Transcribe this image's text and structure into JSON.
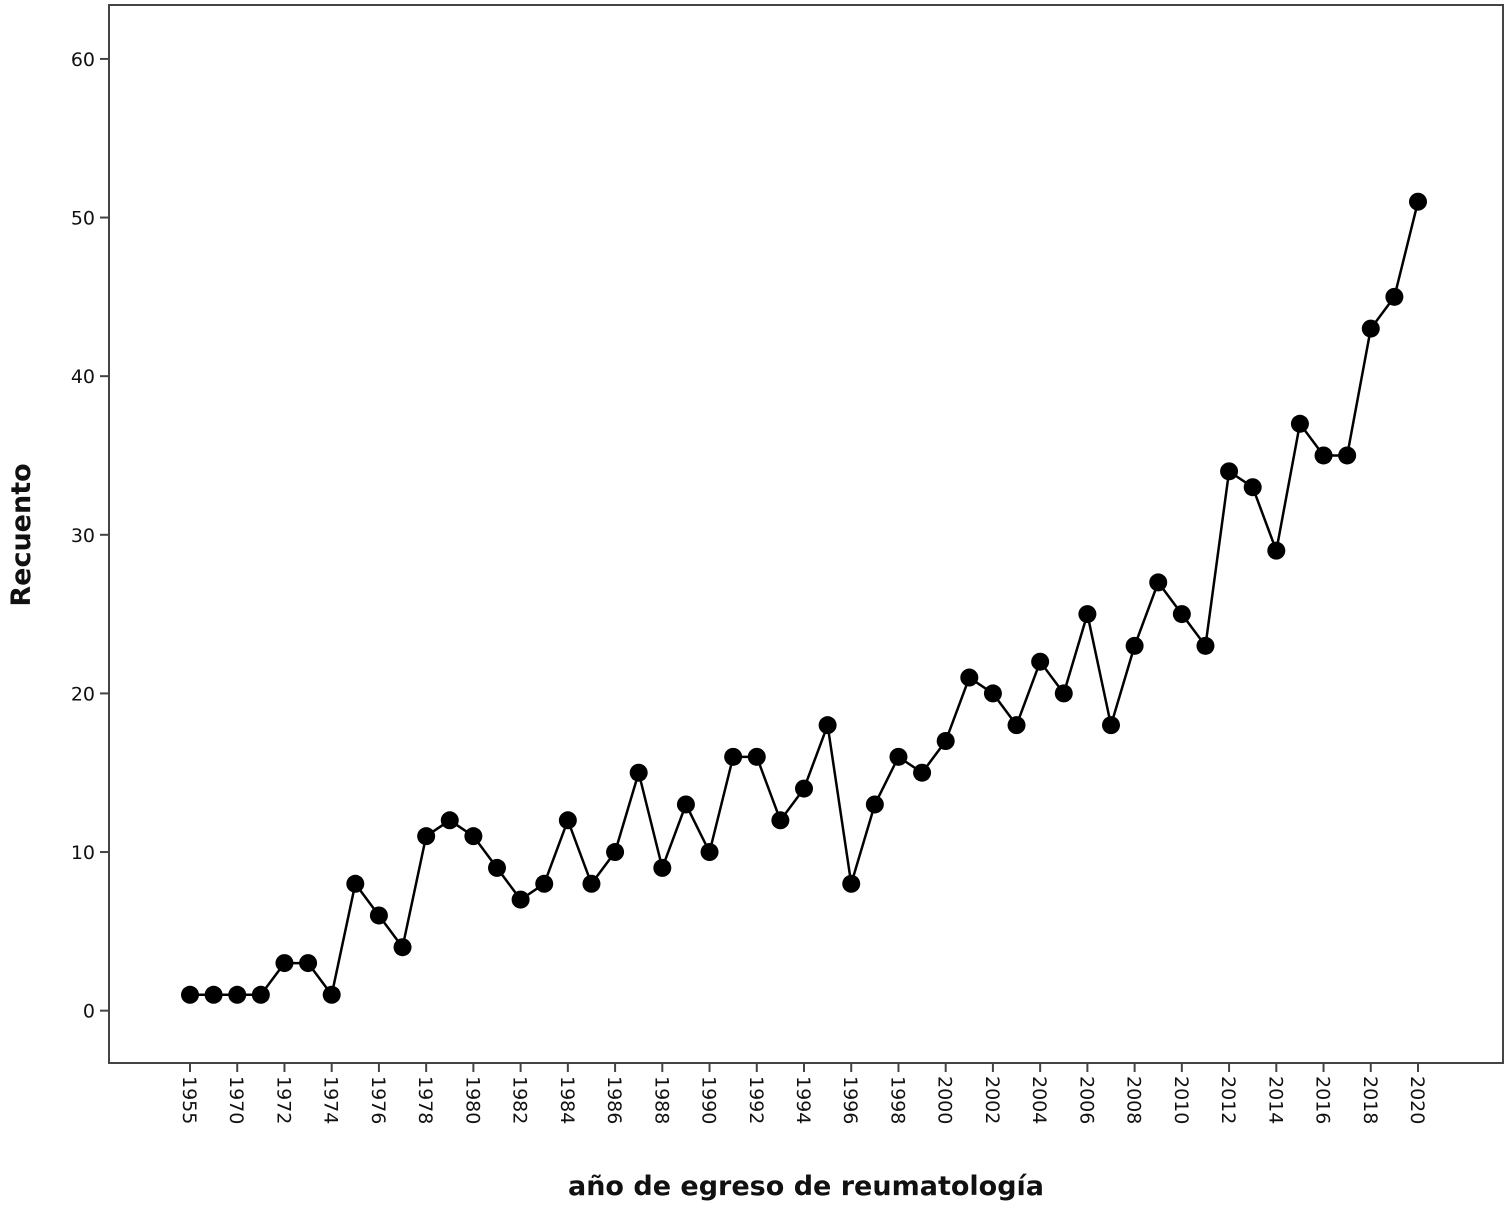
{
  "chart_data": {
    "type": "line",
    "x_label": "año de egreso de reumatología",
    "y_label": "Recuento",
    "categories": [
      "1955",
      null,
      "1970",
      null,
      "1972",
      null,
      "1974",
      null,
      "1976",
      null,
      "1978",
      null,
      "1980",
      null,
      "1982",
      null,
      "1984",
      null,
      "1986",
      null,
      "1988",
      null,
      "1990",
      null,
      "1992",
      null,
      "1994",
      null,
      "1996",
      null,
      "1998",
      null,
      "2000",
      null,
      "2002",
      null,
      "2004",
      null,
      "2006",
      null,
      "2008",
      null,
      "2010",
      null,
      "2012",
      null,
      "2014",
      null,
      "2016",
      null,
      "2018",
      null,
      "2020"
    ],
    "values": [
      1,
      1,
      1,
      1,
      3,
      3,
      1,
      8,
      6,
      4,
      11,
      12,
      11,
      9,
      7,
      8,
      12,
      8,
      10,
      15,
      9,
      13,
      10,
      16,
      16,
      12,
      14,
      18,
      8,
      13,
      16,
      15,
      17,
      21,
      20,
      18,
      22,
      20,
      25,
      18,
      23,
      27,
      25,
      23,
      34,
      33,
      29,
      37,
      35,
      35,
      43,
      45,
      51
    ],
    "color": "#000000",
    "ylim": [
      -3.3,
      63.4
    ],
    "yticks": [
      0,
      10,
      20,
      30,
      40,
      50,
      60
    ]
  }
}
